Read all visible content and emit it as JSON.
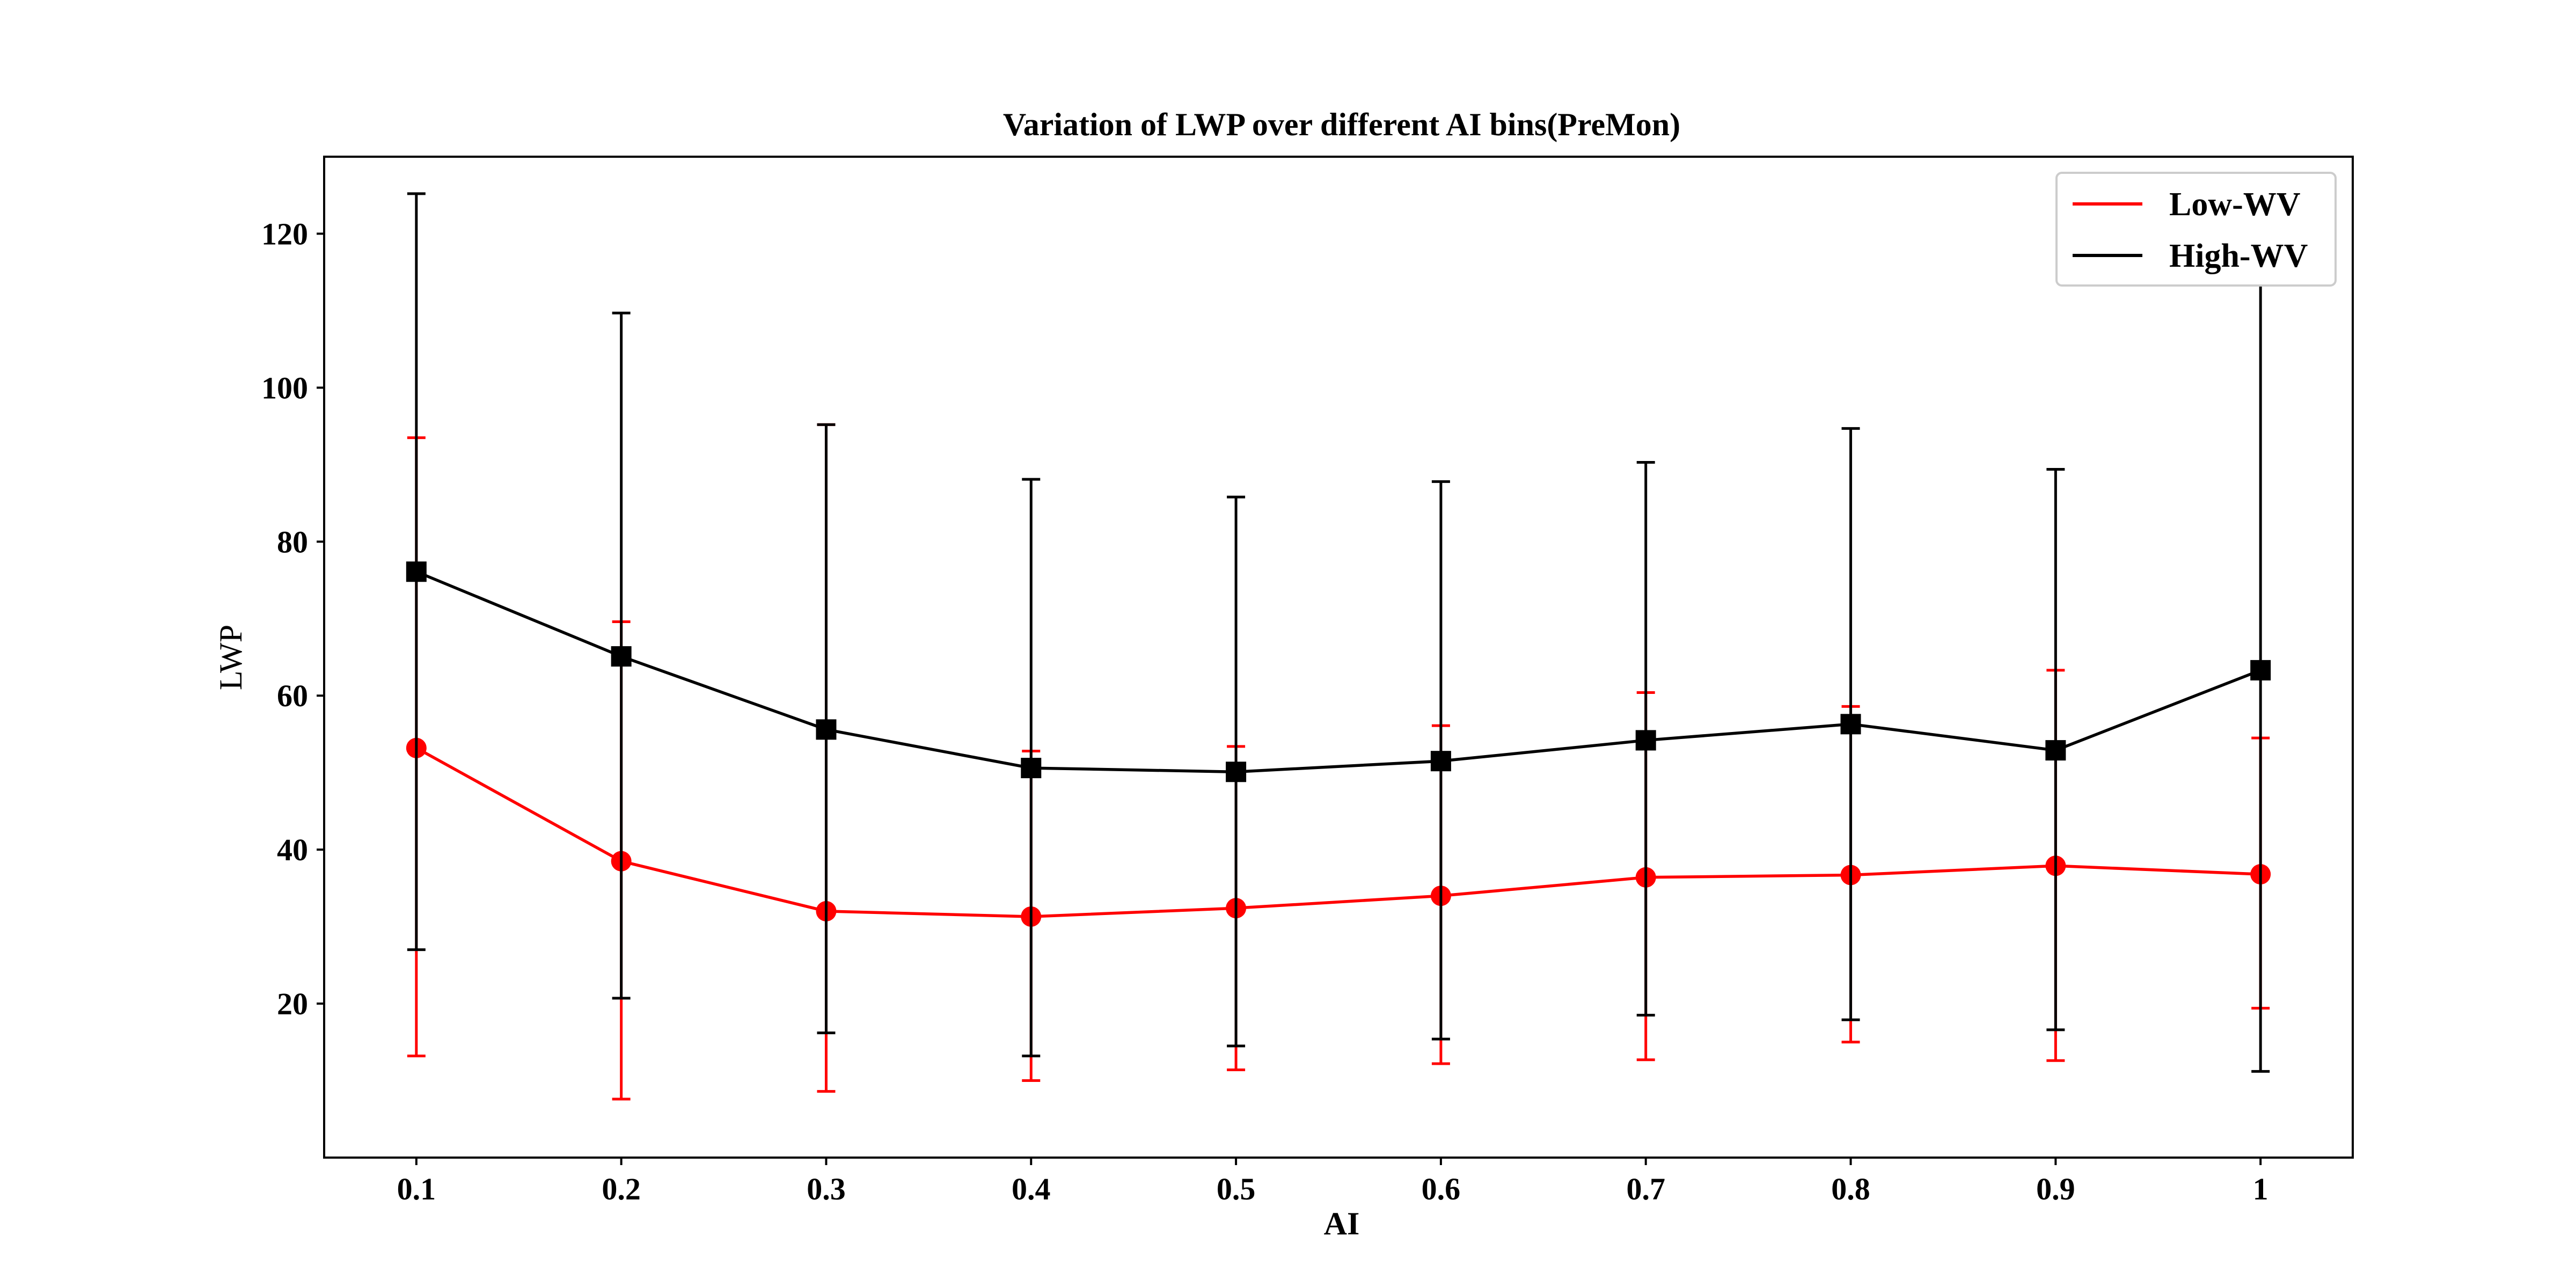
{
  "chart_data": {
    "type": "line",
    "title": "Variation of LWP over different AI bins(PreMon)",
    "xlabel": "AI",
    "ylabel": "LWP",
    "x": [
      0.1,
      0.2,
      0.3,
      0.4,
      0.5,
      0.6,
      0.7,
      0.8,
      0.9,
      1.0
    ],
    "x_tick_labels": [
      "0.1",
      "0.2",
      "0.3",
      "0.4",
      "0.5",
      "0.6",
      "0.7",
      "0.8",
      "0.9",
      "1"
    ],
    "y_ticks": [
      20,
      40,
      60,
      80,
      100,
      120
    ],
    "xlim": [
      0.055,
      1.045
    ],
    "ylim": [
      0,
      130
    ],
    "grid": false,
    "legend_position": "top-right",
    "series": [
      {
        "name": "Low-WV",
        "color": "#ff0000",
        "marker": "circle",
        "values": [
          53.2,
          38.5,
          32.0,
          31.3,
          32.4,
          34.0,
          36.4,
          36.7,
          37.9,
          36.8
        ],
        "error_low": [
          13.2,
          7.6,
          8.6,
          10.0,
          11.4,
          12.2,
          12.7,
          15.0,
          12.6,
          19.4
        ],
        "error_high": [
          93.5,
          69.6,
          95.2,
          52.8,
          53.4,
          56.1,
          60.4,
          58.6,
          63.3,
          54.5
        ]
      },
      {
        "name": "High-WV",
        "color": "#000000",
        "marker": "square",
        "values": [
          76.1,
          65.1,
          55.6,
          50.6,
          50.1,
          51.5,
          54.2,
          56.3,
          52.9,
          63.3
        ],
        "error_low": [
          27.0,
          20.7,
          16.2,
          13.2,
          14.5,
          15.4,
          18.5,
          17.9,
          16.6,
          11.2
        ],
        "error_high": [
          125.2,
          109.7,
          95.2,
          88.1,
          85.8,
          87.8,
          90.3,
          94.7,
          89.4,
          115.6
        ]
      }
    ]
  }
}
